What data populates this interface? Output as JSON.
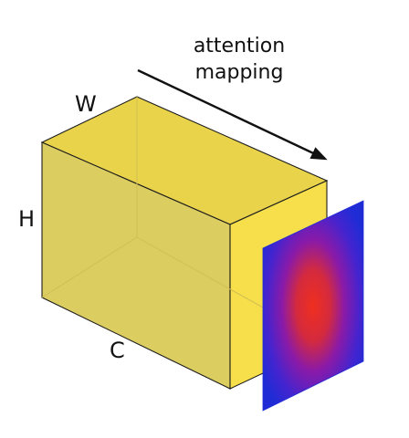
{
  "diagram": {
    "labels": {
      "width": "W",
      "height": "H",
      "channels": "C"
    },
    "annotation": {
      "line1": "attention",
      "line2": "mapping"
    },
    "colors": {
      "cube_front": "#dccd61",
      "cube_top": "#e8d34b",
      "cube_side": "#f6df4a",
      "cube_edge": "#1d1d1d",
      "heatmap_center": "#ef2f1f",
      "heatmap_mid": "#8a1aa8",
      "heatmap_outer": "#1f2cd6",
      "arrow": "#111111",
      "text": "#111111",
      "background": "#ffffff"
    },
    "icons": {
      "arrow": "arrow-right-down-icon"
    }
  }
}
